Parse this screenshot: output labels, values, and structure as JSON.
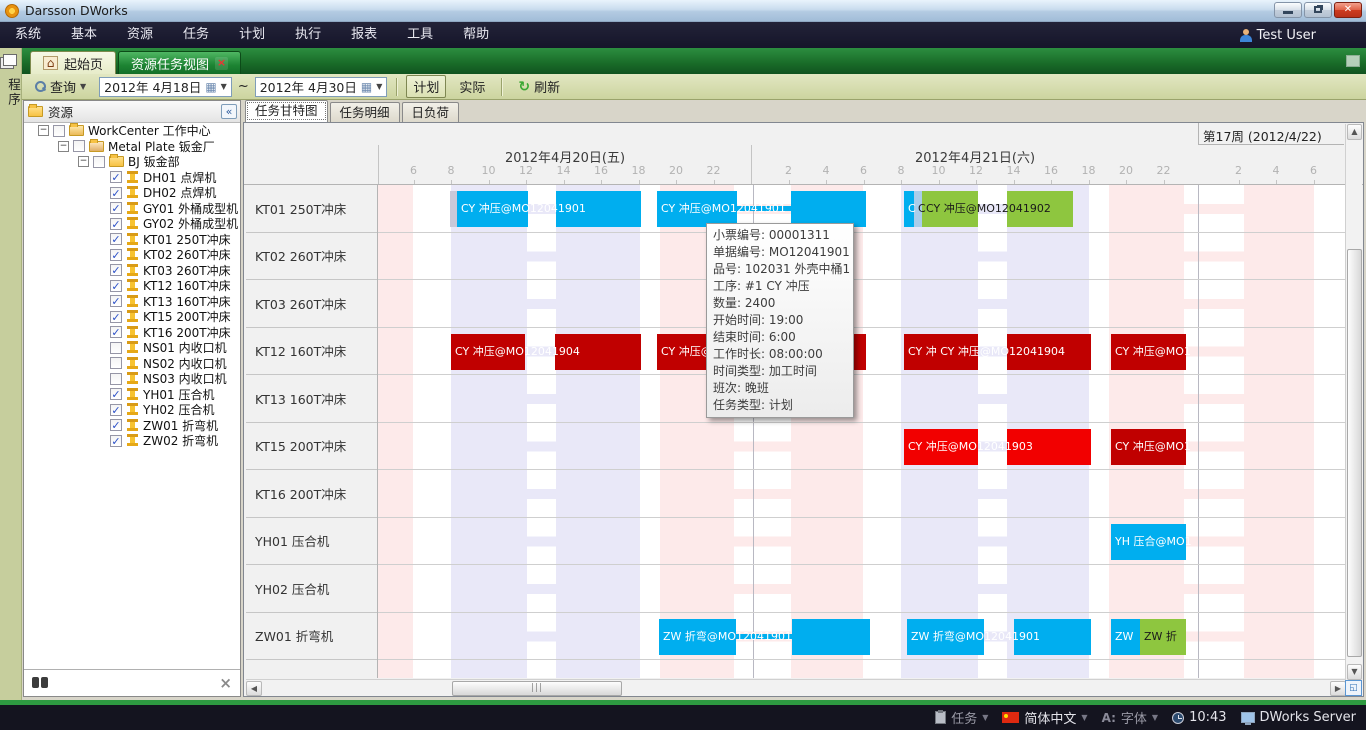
{
  "colors": {
    "cyan": "#00aeef",
    "green": "#8ec63f",
    "red": "#f20000",
    "darkred": "#c00000",
    "lightblue": "#aacdea",
    "handle": "#c9c9d9",
    "pink": "#fdeaea",
    "lavender": "#e9e8f8",
    "tab_green": "#1d8433",
    "status_bg": "#14141f"
  },
  "window": {
    "title": "Darsson DWorks",
    "user": "Test User"
  },
  "menu_items": [
    "系统",
    "基本",
    "资源",
    "任务",
    "计划",
    "执行",
    "报表",
    "工具",
    "帮助"
  ],
  "doc_tabs": {
    "home": "起始页",
    "active": "资源任务视图"
  },
  "program_strip": "程序",
  "toolbar": {
    "query": "查询",
    "date_from": "2012年 4月18日",
    "tilde": "~",
    "date_to": "2012年 4月30日",
    "plan": "计划",
    "actual": "实际",
    "refresh": "刷新"
  },
  "resource_panel": {
    "title": "资源",
    "tree": [
      {
        "level": 0,
        "icon": "wc",
        "checked": false,
        "label": "WorkCenter 工作中心"
      },
      {
        "level": 1,
        "icon": "fac",
        "checked": false,
        "label": "Metal Plate 钣金厂"
      },
      {
        "level": 2,
        "icon": "folder",
        "checked": false,
        "label": "BJ 钣金部"
      },
      {
        "level": 3,
        "icon": "machine",
        "checked": true,
        "label": "DH01 点焊机"
      },
      {
        "level": 3,
        "icon": "machine",
        "checked": true,
        "label": "DH02 点焊机"
      },
      {
        "level": 3,
        "icon": "machine",
        "checked": true,
        "label": "GY01 外桶成型机"
      },
      {
        "level": 3,
        "icon": "machine",
        "checked": true,
        "label": "GY02 外桶成型机"
      },
      {
        "level": 3,
        "icon": "machine",
        "checked": true,
        "label": "KT01 250T冲床"
      },
      {
        "level": 3,
        "icon": "machine",
        "checked": true,
        "label": "KT02 260T冲床"
      },
      {
        "level": 3,
        "icon": "machine",
        "checked": true,
        "label": "KT03 260T冲床"
      },
      {
        "level": 3,
        "icon": "machine",
        "checked": true,
        "label": "KT12 160T冲床"
      },
      {
        "level": 3,
        "icon": "machine",
        "checked": true,
        "label": "KT13 160T冲床"
      },
      {
        "level": 3,
        "icon": "machine",
        "checked": true,
        "label": "KT15 200T冲床"
      },
      {
        "level": 3,
        "icon": "machine",
        "checked": true,
        "label": "KT16 200T冲床"
      },
      {
        "level": 3,
        "icon": "machine",
        "checked": false,
        "label": "NS01 内收口机"
      },
      {
        "level": 3,
        "icon": "machine",
        "checked": false,
        "label": "NS02 内收口机"
      },
      {
        "level": 3,
        "icon": "machine",
        "checked": false,
        "label": "NS03 内收口机"
      },
      {
        "level": 3,
        "icon": "machine",
        "checked": true,
        "label": "YH01 压合机"
      },
      {
        "level": 3,
        "icon": "machine",
        "checked": true,
        "label": "YH02 压合机"
      },
      {
        "level": 3,
        "icon": "machine",
        "checked": true,
        "label": "ZW01 折弯机"
      },
      {
        "level": 3,
        "icon": "machine",
        "checked": true,
        "label": "ZW02 折弯机"
      }
    ]
  },
  "view_tabs": [
    {
      "label": "任务甘特图",
      "active": true
    },
    {
      "label": "任务明细",
      "active": false
    },
    {
      "label": "日负荷",
      "active": false
    }
  ],
  "gantt": {
    "week_label": "第17周 (2012/4/22)",
    "days": [
      {
        "label": "2012年4月20日(五)",
        "hours": [
          6,
          8,
          10,
          12,
          14,
          16,
          18,
          20,
          22
        ]
      },
      {
        "label": "2012年4月21日(六)",
        "hours": [
          2,
          4,
          6,
          8,
          10,
          12,
          14,
          16,
          18,
          20,
          22
        ]
      }
    ],
    "week_hours": [
      2,
      4,
      6
    ],
    "rows": [
      {
        "label": "KT01 250T冲床",
        "bars": [
          {
            "c": "handle",
            "t": "",
            "segs": [
              [
                449,
                7
              ]
            ]
          },
          {
            "c": "cyan",
            "t": "CY 冲压@MO12041901",
            "segs": [
              [
                456,
                71
              ],
              [
                555,
                85
              ]
            ]
          },
          {
            "c": "cyan",
            "t": "CY 冲压@MO12041901",
            "segs": [
              [
                656,
                80
              ],
              [
                790,
                75
              ]
            ],
            "conn": true
          },
          {
            "c": "cyan",
            "t": "C",
            "segs": [
              [
                903,
                10
              ]
            ]
          },
          {
            "c": "lightblue",
            "t": "C",
            "segs": [
              [
                913,
                8
              ]
            ]
          },
          {
            "c": "green",
            "t": "CY 冲压@MO12041902",
            "segs": [
              [
                921,
                56
              ],
              [
                1006,
                66
              ]
            ]
          }
        ]
      },
      {
        "label": "KT02 260T冲床",
        "bars": []
      },
      {
        "label": "KT03 260T冲床",
        "bars": []
      },
      {
        "label": "KT12 160T冲床",
        "bars": [
          {
            "c": "darkred",
            "t": "CY 冲压@MO12041904",
            "segs": [
              [
                450,
                74
              ],
              [
                554,
                86
              ]
            ]
          },
          {
            "c": "darkred",
            "t": "CY 冲压@MO12041901",
            "segs": [
              [
                656,
                80
              ],
              [
                790,
                75
              ]
            ],
            "conn": true
          },
          {
            "c": "darkred",
            "t": "CY 冲 CY 冲压@MO12041904",
            "segs": [
              [
                903,
                74
              ],
              [
                1006,
                84
              ]
            ]
          },
          {
            "c": "darkred",
            "t": "CY 冲压@MO1",
            "segs": [
              [
                1110,
                75
              ]
            ]
          }
        ]
      },
      {
        "label": "KT13 160T冲床",
        "bars": []
      },
      {
        "label": "KT15 200T冲床",
        "bars": [
          {
            "c": "red",
            "t": "CY 冲压@MO12041903",
            "segs": [
              [
                903,
                74
              ],
              [
                1006,
                84
              ]
            ]
          },
          {
            "c": "darkred",
            "t": "CY 冲压@MO1",
            "segs": [
              [
                1110,
                75
              ]
            ]
          }
        ]
      },
      {
        "label": "KT16 200T冲床",
        "bars": []
      },
      {
        "label": "YH01 压合机",
        "bars": [
          {
            "c": "cyan",
            "t": "YH 压合@MO1",
            "segs": [
              [
                1110,
                75
              ]
            ]
          }
        ]
      },
      {
        "label": "YH02 压合机",
        "bars": []
      },
      {
        "label": "ZW01 折弯机",
        "bars": [
          {
            "c": "cyan",
            "t": "ZW 折弯@MO12041901",
            "segs": [
              [
                658,
                77
              ],
              [
                791,
                78
              ]
            ],
            "conn": true
          },
          {
            "c": "cyan",
            "t": "ZW 折弯@MO12041901",
            "segs": [
              [
                906,
                77
              ],
              [
                1013,
                77
              ]
            ]
          },
          {
            "c": "cyan",
            "t": "ZW",
            "segs": [
              [
                1110,
                29
              ]
            ]
          },
          {
            "c": "green",
            "t": "ZW 折",
            "segs": [
              [
                1139,
                46
              ]
            ]
          }
        ]
      },
      {
        "label": "ZW02 折弯机",
        "bars": []
      }
    ]
  },
  "tooltip": {
    "lines": [
      "小票编号: 00001311",
      "单据编号: MO12041901",
      "品号: 102031 外壳中桶1",
      "工序: #1  CY 冲压",
      "数量: 2400",
      "开始时间: 19:00",
      "结束时间: 6:00",
      "工作时长: 08:00:00",
      "时间类型: 加工时间",
      "班次: 晚班",
      "任务类型: 计划"
    ]
  },
  "status": {
    "task": "任务",
    "lang": "简体中文",
    "font": "字体",
    "time": "10:43",
    "server": "DWorks Server"
  }
}
